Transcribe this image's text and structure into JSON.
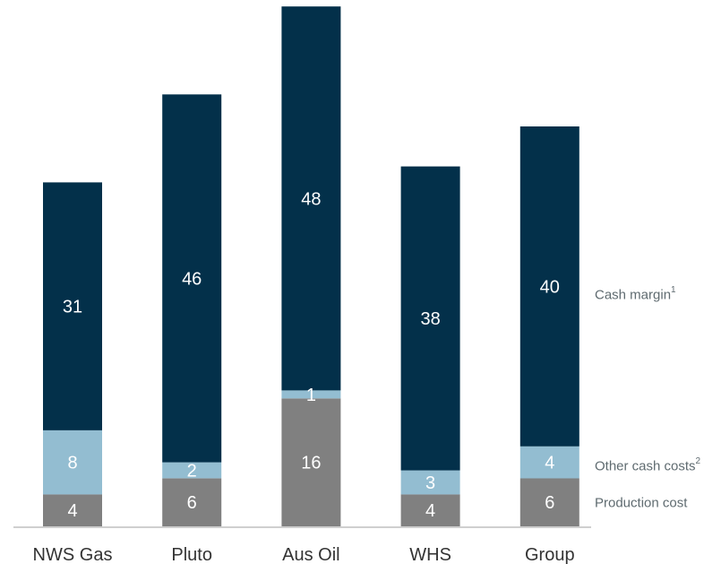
{
  "chart_data": {
    "type": "bar",
    "stacked": true,
    "categories": [
      "NWS Gas",
      "Pluto",
      "Aus Oil",
      "WHS",
      "Group"
    ],
    "series": [
      {
        "name": "Production cost",
        "values": [
          4,
          6,
          16,
          4,
          6
        ],
        "color": "#808080",
        "labels": [
          "4",
          "6",
          "16",
          "4",
          "6"
        ]
      },
      {
        "name": "Other cash costs",
        "values": [
          8,
          2,
          1,
          3,
          4
        ],
        "color": "#93bdd1",
        "labels": [
          "8",
          "2",
          "1",
          "3",
          "4"
        ]
      },
      {
        "name": "Cash margin",
        "values": [
          31,
          46,
          48,
          38,
          40
        ],
        "color": "#03304a",
        "labels": [
          "31",
          "46",
          "48",
          "38",
          "40"
        ]
      }
    ],
    "legend": [
      {
        "text": "Production cost",
        "sup": ""
      },
      {
        "text": "Other cash costs",
        "sup": "2"
      },
      {
        "text": "Cash margin",
        "sup": "1"
      }
    ],
    "legend_position": "right",
    "ylim": [
      0,
      65
    ],
    "grid": false,
    "title": "",
    "xlabel": "",
    "ylabel": ""
  }
}
